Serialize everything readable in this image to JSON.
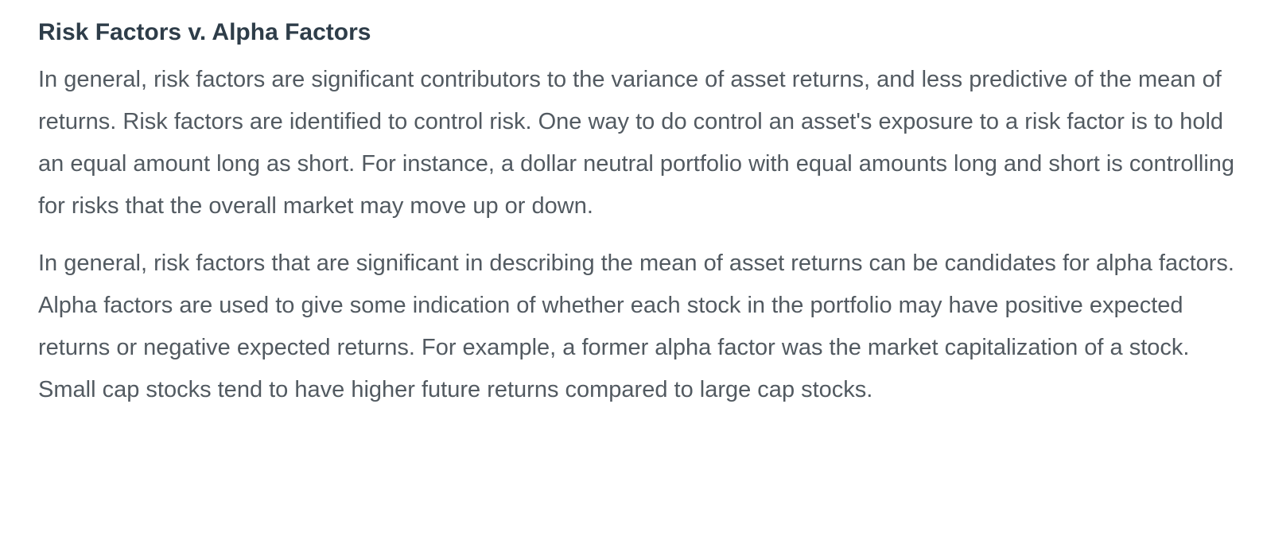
{
  "heading": "Risk Factors v. Alpha Factors",
  "paragraphs": [
    "In general, risk factors are significant contributors to the variance of asset returns, and less predictive of the mean of returns. Risk factors are identified to control risk. One way to do control an asset's exposure to a risk factor is to hold an equal amount long as short. For instance, a dollar neutral portfolio with equal amounts long and short is controlling for risks that the overall market may move up or down.",
    "In general, risk factors that are significant in describing the mean of asset returns can be candidates for alpha factors. Alpha factors are used to give some indication of whether each stock in the portfolio may have positive expected returns or negative expected returns. For example, a former alpha factor was the market capitalization of a stock. Small cap stocks tend to have higher future returns compared to large cap stocks."
  ],
  "colors": {
    "heading": "#2e3d49",
    "body_text": "#525a61",
    "background": "#ffffff"
  }
}
